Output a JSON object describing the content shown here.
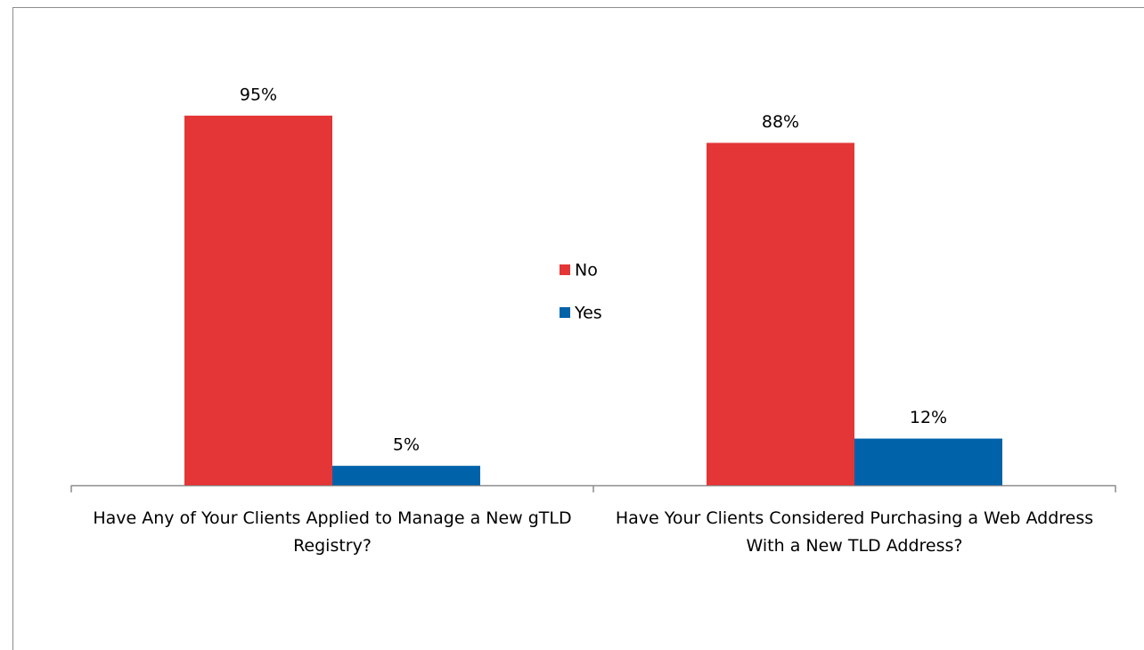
{
  "chart_data": {
    "type": "bar",
    "categories": [
      "Have Any of Your Clients Applied to Manage a New gTLD Registry?",
      "Have Your Clients Considered Purchasing a Web Address With a New TLD Address?"
    ],
    "series": [
      {
        "name": "No",
        "color": "#e43636",
        "values": [
          95,
          88
        ],
        "value_labels": [
          "95%",
          "88%"
        ]
      },
      {
        "name": "Yes",
        "color": "#0062a9",
        "values": [
          5,
          12
        ],
        "value_labels": [
          "5%",
          "12%"
        ]
      }
    ],
    "ylim": [
      0,
      100
    ],
    "legend": "center"
  }
}
